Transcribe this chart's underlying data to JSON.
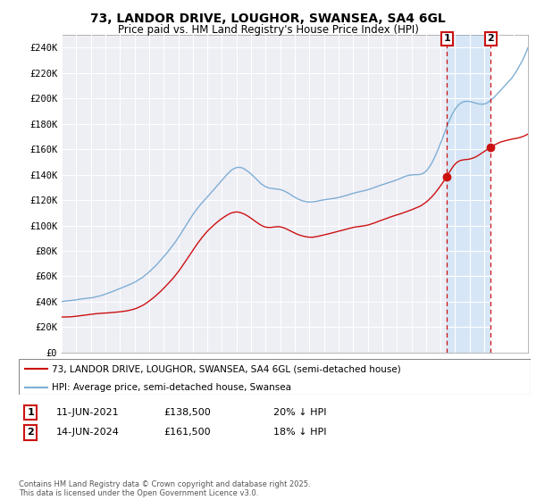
{
  "title": "73, LANDOR DRIVE, LOUGHOR, SWANSEA, SA4 6GL",
  "subtitle": "Price paid vs. HM Land Registry's House Price Index (HPI)",
  "ylim": [
    0,
    250000
  ],
  "yticks": [
    0,
    20000,
    40000,
    60000,
    80000,
    100000,
    120000,
    140000,
    160000,
    180000,
    200000,
    220000,
    240000
  ],
  "ytick_labels": [
    "£0",
    "£20K",
    "£40K",
    "£60K",
    "£80K",
    "£100K",
    "£120K",
    "£140K",
    "£160K",
    "£180K",
    "£200K",
    "£220K",
    "£240K"
  ],
  "x_start_year": 1995,
  "x_end_year": 2027,
  "hpi_color": "#7eaed4",
  "price_color": "#cc1111",
  "marker1_year": 2021.44,
  "marker1_price": 138500,
  "marker1_label": "1",
  "marker1_date": "11-JUN-2021",
  "marker1_amount": "£138,500",
  "marker1_hpi_text": "20% ↓ HPI",
  "marker2_year": 2024.44,
  "marker2_price": 161500,
  "marker2_label": "2",
  "marker2_date": "14-JUN-2024",
  "marker2_amount": "£161,500",
  "marker2_hpi_text": "18% ↓ HPI",
  "legend_line1": "73, LANDOR DRIVE, LOUGHOR, SWANSEA, SA4 6GL (semi-detached house)",
  "legend_line2": "HPI: Average price, semi-detached house, Swansea",
  "footer": "Contains HM Land Registry data © Crown copyright and database right 2025.\nThis data is licensed under the Open Government Licence v3.0.",
  "background_color": "#ffffff",
  "plot_bg_color": "#eeeef5",
  "grid_color": "#ffffff",
  "hpi_anchors_x": [
    1995,
    1996,
    1997,
    1998,
    1999,
    2000,
    2001,
    2002,
    2003,
    2004,
    2005,
    2006,
    2007,
    2008,
    2009,
    2010,
    2011,
    2012,
    2013,
    2014,
    2015,
    2016,
    2017,
    2018,
    2019,
    2020,
    2021,
    2022,
    2023,
    2024,
    2025,
    2026,
    2027
  ],
  "hpi_anchors_y": [
    40000,
    41500,
    43000,
    46000,
    50000,
    55000,
    63000,
    75000,
    90000,
    108000,
    122000,
    135000,
    145000,
    140000,
    130000,
    128000,
    122000,
    118000,
    120000,
    122000,
    125000,
    128000,
    132000,
    136000,
    140000,
    143000,
    165000,
    192000,
    198000,
    196000,
    205000,
    218000,
    240000
  ],
  "price_anchors_x": [
    1995,
    1996,
    1997,
    1998,
    1999,
    2000,
    2001,
    2002,
    2003,
    2004,
    2005,
    2006,
    2007,
    2008,
    2009,
    2010,
    2011,
    2012,
    2013,
    2014,
    2015,
    2016,
    2017,
    2018,
    2019,
    2020,
    2021.44,
    2022,
    2023,
    2024.44,
    2025,
    2026,
    2027
  ],
  "price_anchors_y": [
    28000,
    28500,
    30000,
    31000,
    32000,
    34000,
    40000,
    50000,
    63000,
    80000,
    95000,
    105000,
    110000,
    105000,
    98000,
    98000,
    93000,
    90000,
    92000,
    95000,
    98000,
    100000,
    104000,
    108000,
    112000,
    118000,
    138500,
    148000,
    152000,
    161500,
    165000,
    168000,
    172000
  ]
}
